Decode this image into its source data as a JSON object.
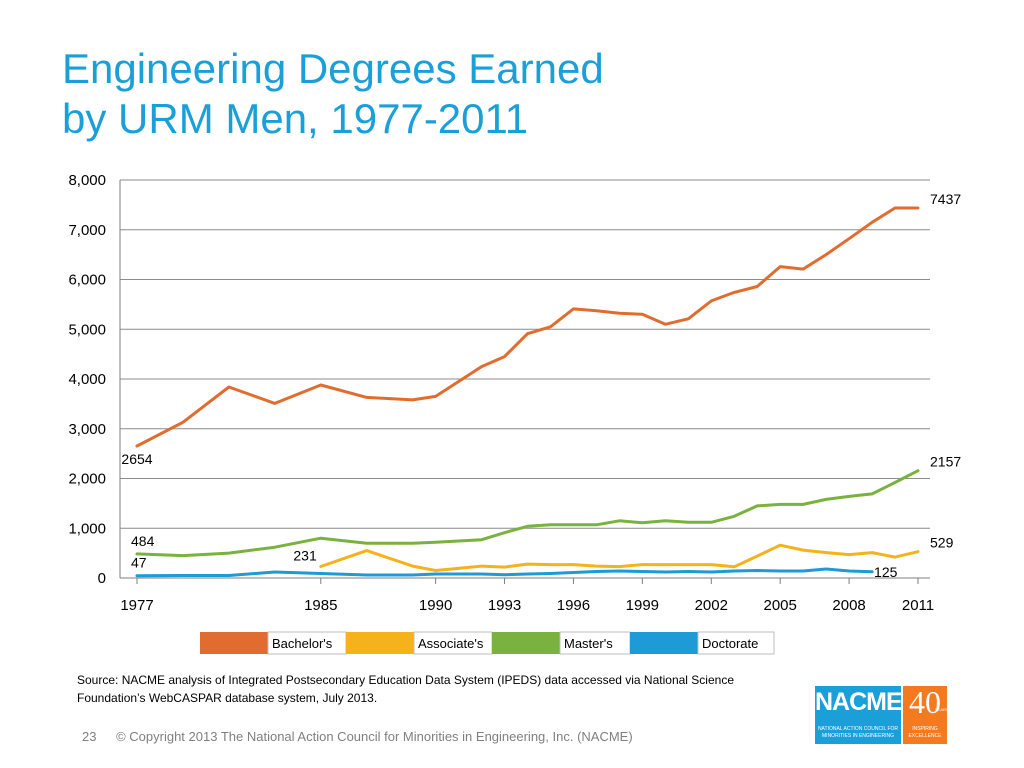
{
  "slide": {
    "title_line1": "Engineering Degrees Earned",
    "title_line2": "by URM Men, 1977-2011",
    "source": "Source: NACME analysis  of Integrated Postsecondary Education Data System (IPEDS) data accessed via National Science Foundation’s WebCASPAR database system, July 2013.",
    "page_number": "23",
    "copyright": "© Copyright 2013 The National Action Council for Minorities in Engineering, Inc. (NACME)"
  },
  "logo": {
    "name": "NACME",
    "number": "40",
    "years_text": "YEARS",
    "tagline": "NATIONAL ACTION COUNCIL FOR MINORITIES IN ENGINEERING",
    "side_tagline": "INSPIRING EXCELLENCE",
    "colors": {
      "main": "#1a9fd9",
      "side": "#f47a20"
    }
  },
  "chart_data": {
    "type": "line",
    "title": "",
    "xlabel": "",
    "ylabel": "",
    "ylim": [
      0,
      8000
    ],
    "xlim": [
      1977,
      2011
    ],
    "yticks": [
      0,
      1000,
      2000,
      3000,
      4000,
      5000,
      6000,
      7000,
      8000
    ],
    "ytick_labels": [
      "0",
      "1,000",
      "2,000",
      "3,000",
      "4,000",
      "5,000",
      "6,000",
      "7,000",
      "8,000"
    ],
    "xticks": [
      1977,
      1985,
      1990,
      1993,
      1996,
      1999,
      2002,
      2005,
      2008,
      2011
    ],
    "xtick_labels": [
      "1977",
      "1985",
      "1990",
      "1993",
      "1996",
      "1999",
      "2002",
      "2005",
      "2008",
      "2011"
    ],
    "grid": "horizontal",
    "legend_position": "bottom",
    "series": [
      {
        "name": "Bachelor's",
        "color": "#e06d2f",
        "x": [
          1977,
          1979,
          1981,
          1983,
          1985,
          1987,
          1989,
          1990,
          1992,
          1993,
          1994,
          1995,
          1996,
          1997,
          1998,
          1999,
          2000,
          2001,
          2002,
          2003,
          2004,
          2005,
          2006,
          2007,
          2008,
          2009,
          2010,
          2011
        ],
        "values": [
          2654,
          3130,
          3840,
          3510,
          3880,
          3630,
          3580,
          3650,
          4250,
          4450,
          4910,
          5050,
          5410,
          5370,
          5320,
          5300,
          5100,
          5210,
          5570,
          5740,
          5860,
          6260,
          6210,
          6500,
          6820,
          7150,
          7437,
          7437
        ]
      },
      {
        "name": "Associate's",
        "color": "#f5b21a",
        "x": [
          1985,
          1987,
          1989,
          1990,
          1992,
          1993,
          1994,
          1995,
          1996,
          1997,
          1998,
          1999,
          2000,
          2001,
          2002,
          2003,
          2004,
          2005,
          2006,
          2007,
          2008,
          2009,
          2010,
          2011
        ],
        "values": [
          231,
          550,
          240,
          150,
          240,
          220,
          280,
          270,
          270,
          240,
          230,
          270,
          270,
          270,
          270,
          225,
          440,
          660,
          560,
          510,
          470,
          510,
          420,
          529
        ]
      },
      {
        "name": "Master's",
        "color": "#79b23e",
        "x": [
          1977,
          1979,
          1981,
          1983,
          1985,
          1987,
          1989,
          1990,
          1992,
          1993,
          1994,
          1995,
          1996,
          1997,
          1998,
          1999,
          2000,
          2001,
          2002,
          2003,
          2004,
          2005,
          2006,
          2007,
          2008,
          2009,
          2010,
          2011
        ],
        "values": [
          484,
          450,
          500,
          620,
          800,
          700,
          700,
          720,
          770,
          910,
          1040,
          1070,
          1070,
          1070,
          1150,
          1110,
          1150,
          1120,
          1120,
          1240,
          1450,
          1480,
          1480,
          1580,
          1640,
          1690,
          1920,
          2157
        ]
      },
      {
        "name": "Doctorate",
        "color": "#1e9ad6",
        "x": [
          1977,
          1979,
          1981,
          1983,
          1985,
          1987,
          1989,
          1990,
          1992,
          1993,
          1994,
          1995,
          1996,
          1997,
          1998,
          1999,
          2000,
          2001,
          2002,
          2003,
          2004,
          2005,
          2006,
          2007,
          2008,
          2009
        ],
        "values": [
          47,
          50,
          50,
          120,
          90,
          60,
          60,
          80,
          80,
          65,
          80,
          90,
          110,
          130,
          140,
          130,
          120,
          130,
          120,
          140,
          150,
          140,
          140,
          180,
          140,
          125
        ]
      }
    ],
    "data_labels": [
      {
        "text": "2654",
        "series": "Bachelor's",
        "x": 1977,
        "y": 2654,
        "place": "below"
      },
      {
        "text": "7437",
        "series": "Bachelor's",
        "x": 2011,
        "y": 7437,
        "place": "right"
      },
      {
        "text": "484",
        "series": "Master's",
        "x": 1977,
        "y": 484,
        "place": "above"
      },
      {
        "text": "2157",
        "series": "Master's",
        "x": 2011,
        "y": 2157,
        "place": "right"
      },
      {
        "text": "47",
        "series": "Doctorate",
        "x": 1977,
        "y": 47,
        "place": "above"
      },
      {
        "text": "231",
        "series": "Associate's",
        "x": 1985,
        "y": 231,
        "place": "left"
      },
      {
        "text": "529",
        "series": "Associate's",
        "x": 2011,
        "y": 529,
        "place": "right"
      },
      {
        "text": "125",
        "series": "Doctorate",
        "x": 2009,
        "y": 125,
        "place": "right"
      }
    ]
  }
}
